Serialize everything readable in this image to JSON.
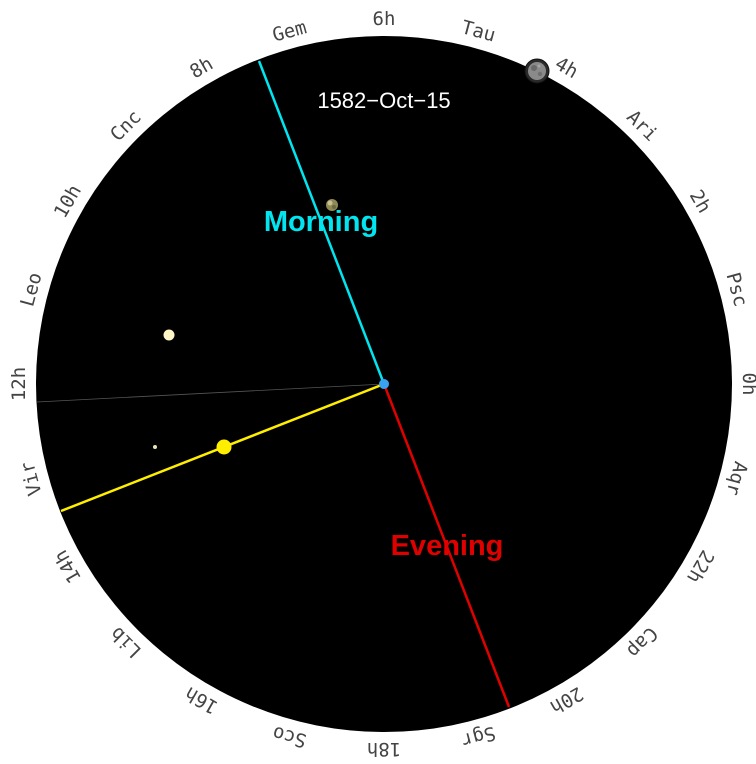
{
  "date_label": "1582−Oct−15",
  "morning_label": "Morning",
  "evening_label": "Evening",
  "colors": {
    "sky": "#000000",
    "morning": "#00e5f0",
    "evening": "#e00000",
    "sun": "#ffee00",
    "center": "#3aa0f0",
    "rim_text": "#444444",
    "date_text": "#ffffff"
  },
  "rim_labels": [
    "0h",
    "Psc",
    "2h",
    "Ari",
    "4h",
    "Tau",
    "6h",
    "Gem",
    "8h",
    "Cnc",
    "10h",
    "Leo",
    "12h",
    "Vir",
    "14h",
    "Lib",
    "16h",
    "Sco",
    "18h",
    "Sgr",
    "20h",
    "Cap",
    "22h",
    "Aqr"
  ],
  "bodies": [
    {
      "name": "moon-body",
      "icon": "moon"
    },
    {
      "name": "planet-body-morning",
      "icon": "planet"
    },
    {
      "name": "venus-body",
      "icon": "bright-dot"
    },
    {
      "name": "small-planet-body",
      "icon": "dot"
    },
    {
      "name": "sun-body",
      "icon": "sun"
    }
  ]
}
